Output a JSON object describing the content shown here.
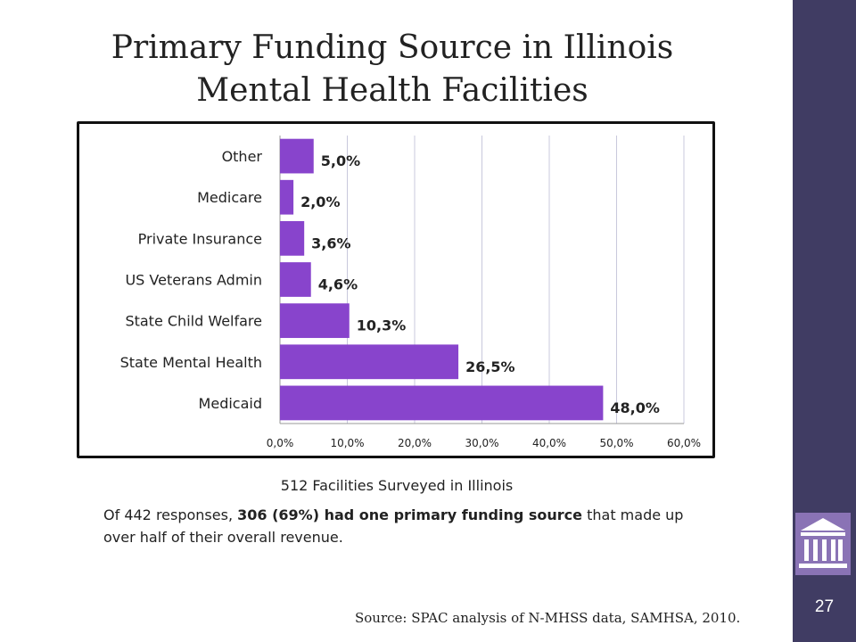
{
  "slide": {
    "title_line1": "Primary Funding Source in Illinois",
    "title_line2": "Mental Health Facilities",
    "subtitle": "512 Facilities Surveyed in Illinois",
    "note": {
      "pre": "Of 442 responses, ",
      "bold": "306 (69%) had one primary funding source",
      "post": " that made up over half of their overall revenue."
    },
    "source": "Source: SPAC analysis of N-MHSS data, SAMHSA, 2010.",
    "page_number": "27",
    "logo_icon": "building-columns-icon"
  },
  "colors": {
    "bar": "#8844cc",
    "sidebar": "#403c63",
    "logo": "#8a73b5",
    "grid": "#c8c8dc"
  },
  "chart_data": {
    "type": "bar",
    "orientation": "horizontal",
    "categories": [
      "Other",
      "Medicare",
      "Private Insurance",
      "US Veterans Admin",
      "State Child Welfare",
      "State Mental Health",
      "Medicaid"
    ],
    "values": [
      5.0,
      2.0,
      3.6,
      4.6,
      10.3,
      26.5,
      48.0
    ],
    "value_labels": [
      "5,0%",
      "2,0%",
      "3,6%",
      "4,6%",
      "10,3%",
      "26,5%",
      "48,0%"
    ],
    "x_ticks": [
      "0,0%",
      "10,0%",
      "20,0%",
      "30,0%",
      "40,0%",
      "50,0%",
      "60,0%"
    ],
    "xlim": [
      0,
      60
    ],
    "grid": true,
    "legend": "none"
  }
}
